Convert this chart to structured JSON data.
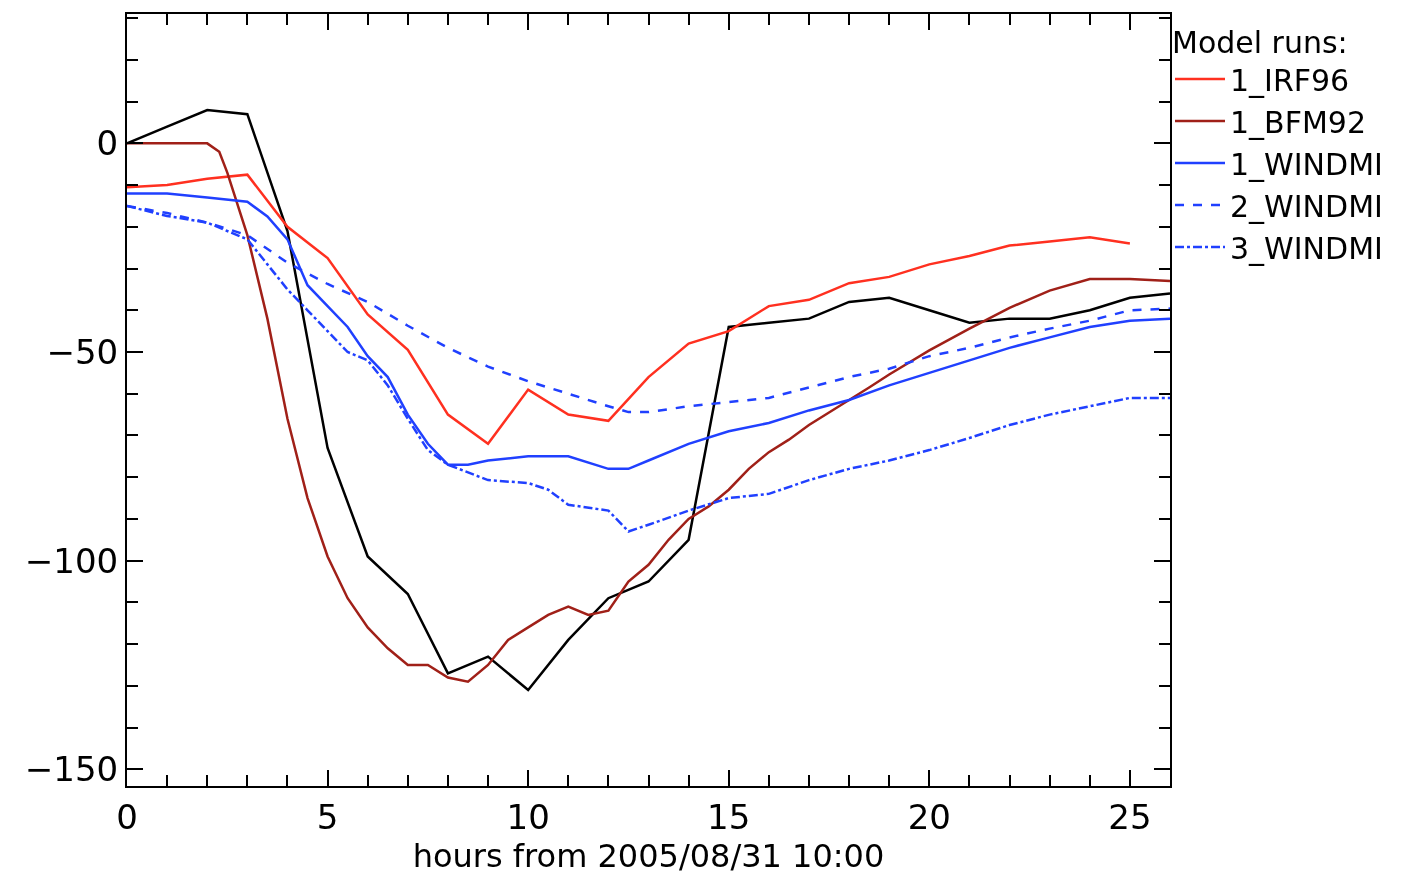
{
  "chart_data": {
    "type": "line",
    "xlabel": "hours from 2005/08/31 10:00",
    "legend_title": "Model runs:",
    "legend": "right",
    "line_style": "solid",
    "marker": "none",
    "xlim": [
      0,
      26
    ],
    "xticks": [
      0,
      5,
      10,
      15,
      20,
      25
    ],
    "ylim": [
      -154,
      31
    ],
    "yticks": [
      -150,
      -100,
      -50,
      0
    ],
    "series": [
      {
        "color": "#000000",
        "x": [
          0,
          1,
          2,
          3,
          4,
          5,
          6,
          7,
          8,
          9,
          10,
          11,
          12,
          13,
          14,
          15,
          16,
          17,
          18,
          19,
          20,
          21,
          22,
          23,
          24,
          25,
          26
        ],
        "values": [
          0,
          4,
          8,
          7,
          -21,
          -73,
          -99,
          -108,
          -127,
          -123,
          -131,
          -119,
          -109,
          -105,
          -95,
          -44,
          -43,
          -42,
          -38,
          -37,
          -40,
          -43,
          -42,
          -42,
          -40,
          -37,
          -36
        ]
      },
      {
        "name": "1_IRF96",
        "color": "#ff3020",
        "x": [
          0,
          1,
          2,
          3,
          4,
          5,
          6,
          7,
          8,
          9,
          10,
          11,
          12,
          13,
          14,
          15,
          16,
          17,
          18,
          19,
          20,
          21,
          22,
          23,
          24,
          25
        ],
        "values": [
          -10.5,
          -10,
          -8.5,
          -7.5,
          -20,
          -27.5,
          -41,
          -49.5,
          -65,
          -72,
          -59,
          -65,
          -66.5,
          -56,
          -48,
          -45,
          -39,
          -37.5,
          -33.5,
          -32,
          -29,
          -27,
          -24.5,
          -23.5,
          -22.5,
          -24
        ]
      },
      {
        "name": "1_BFM92",
        "color": "#a02018",
        "x": [
          0,
          1,
          2,
          2.3,
          2.5,
          3,
          3.5,
          4,
          4.5,
          5,
          5.5,
          6,
          6.5,
          7,
          7.5,
          8,
          8.5,
          9,
          9.5,
          10,
          10.5,
          11,
          11.5,
          12,
          12.5,
          13,
          13.5,
          14,
          14.5,
          15,
          15.5,
          16,
          16.5,
          17,
          17.5,
          18,
          18.5,
          19,
          20,
          21,
          22,
          23,
          24,
          25,
          26
        ],
        "values": [
          0,
          0,
          0,
          -2,
          -7,
          -22,
          -42,
          -66,
          -85,
          -99,
          -109,
          -116,
          -121,
          -125,
          -125,
          -128,
          -129,
          -125,
          -119,
          -116,
          -113,
          -111,
          -113,
          -112,
          -105,
          -101,
          -95,
          -90,
          -87,
          -83,
          -78,
          -74,
          -71,
          -67.5,
          -64.5,
          -61.5,
          -58.5,
          -55.4,
          -49.6,
          -44.4,
          -39.4,
          -35.3,
          -32.5,
          -32.5,
          -33
        ]
      },
      {
        "name": "1_WINDMI",
        "color": "#2040ff",
        "line_style": "solid",
        "x": [
          0,
          1,
          2,
          3,
          3.5,
          4,
          4.5,
          5,
          5.5,
          6,
          6.5,
          7,
          7.5,
          8,
          8.5,
          9,
          10,
          11,
          12,
          12.5,
          13,
          14,
          15,
          16,
          17,
          18,
          19,
          20,
          21,
          22,
          23,
          24,
          25,
          26
        ],
        "values": [
          -12,
          -12,
          -13,
          -14,
          -17.5,
          -23,
          -34,
          -39,
          -44,
          -51,
          -56,
          -65,
          -72,
          -77,
          -77,
          -76,
          -75,
          -75,
          -78,
          -78,
          -76,
          -72,
          -69,
          -67,
          -64,
          -61.5,
          -58,
          -55,
          -52,
          -49,
          -46.5,
          -44,
          -42.5,
          -42
        ]
      },
      {
        "name": "2_WINDMI",
        "color": "#2040ff",
        "line_style": "dashed",
        "x": [
          0,
          1,
          2,
          3,
          4,
          5,
          6,
          7,
          8,
          9,
          10,
          11,
          12,
          12.5,
          13,
          14,
          15,
          16,
          17,
          18,
          19,
          20,
          21,
          22,
          23,
          24,
          25,
          26
        ],
        "values": [
          -15,
          -16.7,
          -19,
          -22,
          -28.6,
          -33.7,
          -38,
          -43.7,
          -49,
          -53.5,
          -57,
          -60,
          -63,
          -64.4,
          -64.4,
          -63,
          -62,
          -61,
          -58.5,
          -56,
          -54,
          -51,
          -49,
          -46.5,
          -44.4,
          -42.5,
          -40,
          -39.6
        ]
      },
      {
        "name": "3_WINDMI",
        "color": "#2040ff",
        "line_style": "dashdot",
        "x": [
          0,
          1,
          2,
          3,
          3.5,
          4,
          4.5,
          5,
          5.5,
          6,
          6.5,
          7,
          7.5,
          8,
          9,
          10,
          10.5,
          11,
          12,
          12.5,
          13,
          14,
          15,
          16,
          17,
          18,
          19,
          20,
          21,
          22,
          23,
          24,
          25,
          26
        ],
        "values": [
          -15,
          -17.4,
          -19,
          -23,
          -29,
          -35,
          -40,
          -45,
          -50,
          -52,
          -58,
          -66,
          -73.5,
          -77,
          -80.7,
          -81.4,
          -83,
          -86.6,
          -88,
          -93,
          -91.4,
          -88,
          -85,
          -84,
          -80.7,
          -78,
          -76,
          -73.5,
          -70.6,
          -67.5,
          -65,
          -63,
          -61,
          -61
        ]
      }
    ]
  }
}
